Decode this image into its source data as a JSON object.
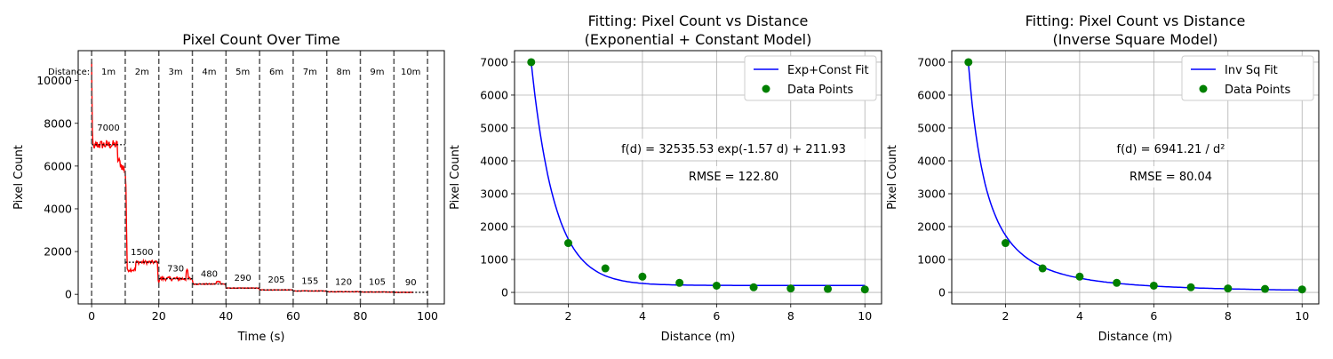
{
  "chart_data": [
    {
      "type": "line",
      "title": "Pixel Count Over Time",
      "xlabel": "Time (s)",
      "ylabel": "Pixel Count",
      "xlim": [
        -4,
        105
      ],
      "ylim": [
        -450,
        11400
      ],
      "xticks": [
        0,
        20,
        40,
        60,
        80,
        100
      ],
      "yticks": [
        0,
        2000,
        4000,
        6000,
        8000,
        10000
      ],
      "line_color": "#ff0000",
      "distance_prefix": "Distance:",
      "boundaries": [
        0,
        10,
        20,
        30,
        40,
        50,
        60,
        70,
        80,
        90,
        100
      ],
      "segments": [
        {
          "label": "1m",
          "t": [
            0,
            10
          ],
          "mean": 7000,
          "mean_label": "7000"
        },
        {
          "label": "2m",
          "t": [
            10,
            20
          ],
          "mean": 1500,
          "mean_label": "1500"
        },
        {
          "label": "3m",
          "t": [
            20,
            30
          ],
          "mean": 730,
          "mean_label": "730"
        },
        {
          "label": "4m",
          "t": [
            30,
            40
          ],
          "mean": 480,
          "mean_label": "480"
        },
        {
          "label": "5m",
          "t": [
            40,
            50
          ],
          "mean": 290,
          "mean_label": "290"
        },
        {
          "label": "6m",
          "t": [
            50,
            60
          ],
          "mean": 205,
          "mean_label": "205"
        },
        {
          "label": "7m",
          "t": [
            60,
            70
          ],
          "mean": 155,
          "mean_label": "155"
        },
        {
          "label": "8m",
          "t": [
            70,
            80
          ],
          "mean": 120,
          "mean_label": "120"
        },
        {
          "label": "9m",
          "t": [
            80,
            90
          ],
          "mean": 105,
          "mean_label": "105"
        },
        {
          "label": "10m",
          "t": [
            90,
            100
          ],
          "mean": 90,
          "mean_label": "90"
        }
      ],
      "grid": false
    },
    {
      "type": "scatter",
      "title": "Fitting: Pixel Count vs Distance",
      "subtitle": "(Exponential + Constant Model)",
      "xlabel": "Distance (m)",
      "ylabel": "Pixel Count",
      "xlim": [
        0.55,
        10.45
      ],
      "ylim": [
        -350,
        7350
      ],
      "xticks": [
        2,
        4,
        6,
        8,
        10
      ],
      "yticks": [
        0,
        1000,
        2000,
        3000,
        4000,
        5000,
        6000,
        7000
      ],
      "x": [
        1,
        2,
        3,
        4,
        5,
        6,
        7,
        8,
        9,
        10
      ],
      "y": [
        7000,
        1500,
        730,
        480,
        290,
        205,
        155,
        120,
        105,
        90
      ],
      "fit": {
        "model": "exp_const",
        "A": 32535.53,
        "k": 1.57,
        "C": 211.93,
        "color": "#0000ff",
        "x_range": [
          1,
          10
        ]
      },
      "point_color": "#008000",
      "legend": [
        "Exp+Const Fit",
        "Data Points"
      ],
      "legend_position": "top-right",
      "annotations": [
        "f(d) = 32535.53 exp(-1.57 d) + 211.93",
        "RMSE = 122.80"
      ],
      "grid": true
    },
    {
      "type": "scatter",
      "title": "Fitting: Pixel Count vs Distance",
      "subtitle": "(Inverse Square Model)",
      "xlabel": "Distance (m)",
      "ylabel": "Pixel Count",
      "xlim": [
        0.55,
        10.45
      ],
      "ylim": [
        -350,
        7350
      ],
      "xticks": [
        2,
        4,
        6,
        8,
        10
      ],
      "yticks": [
        0,
        1000,
        2000,
        3000,
        4000,
        5000,
        6000,
        7000
      ],
      "x": [
        1,
        2,
        3,
        4,
        5,
        6,
        7,
        8,
        9,
        10
      ],
      "y": [
        7000,
        1500,
        730,
        480,
        290,
        205,
        155,
        120,
        105,
        90
      ],
      "fit": {
        "model": "inv_square",
        "A": 6941.21,
        "color": "#0000ff",
        "x_range": [
          1,
          10
        ]
      },
      "point_color": "#008000",
      "legend": [
        "Inv Sq Fit",
        "Data Points"
      ],
      "legend_position": "top-right",
      "annotations": [
        "f(d) = 6941.21 / d²",
        "RMSE = 80.04"
      ],
      "grid": true
    }
  ]
}
